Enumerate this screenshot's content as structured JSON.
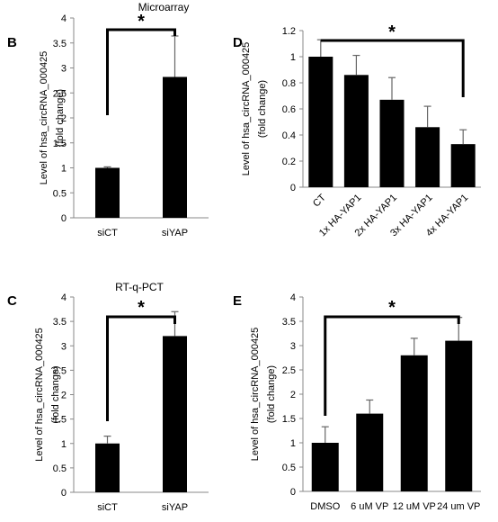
{
  "chart_data": [
    {
      "panel": "B",
      "type": "bar",
      "title": "Microarray",
      "ylabel": [
        "Level of  hsa_circRNA_000425",
        "(fold change)"
      ],
      "categories": [
        "siCT",
        "siYAP"
      ],
      "values": [
        1.0,
        2.82
      ],
      "errors": [
        0.02,
        0.82
      ],
      "ylim": [
        0,
        4
      ],
      "yticks": [
        0,
        0.5,
        1,
        1.5,
        2,
        2.5,
        3,
        3.5,
        4
      ],
      "significance": {
        "label": "*",
        "from": 0,
        "to": 1
      },
      "grid": false
    },
    {
      "panel": "D",
      "type": "bar",
      "title": "",
      "ylabel": [
        "Level of  hsa_circRNA_000425",
        "(fold change)"
      ],
      "categories": [
        "CT",
        "1x HA-YAP1",
        "2x HA-YAP1",
        "3x HA-YAP1",
        "4x HA-YAP1"
      ],
      "values": [
        1.0,
        0.86,
        0.67,
        0.46,
        0.33
      ],
      "errors": [
        0.13,
        0.15,
        0.17,
        0.16,
        0.11
      ],
      "ylim": [
        0,
        1.2
      ],
      "yticks": [
        0,
        0.2,
        0.4,
        0.6,
        0.8,
        1,
        1.2
      ],
      "significance": {
        "label": "*",
        "from": 0,
        "to": 4
      },
      "grid": false
    },
    {
      "panel": "C",
      "type": "bar",
      "title": "RT-q-PCT",
      "ylabel": [
        "Level of  hsa_circRNA_000425",
        "(fold change)"
      ],
      "categories": [
        "siCT",
        "siYAP"
      ],
      "values": [
        1.0,
        3.2
      ],
      "errors": [
        0.15,
        0.5
      ],
      "ylim": [
        0,
        4
      ],
      "yticks": [
        0,
        0.5,
        1,
        1.5,
        2,
        2.5,
        3,
        3.5,
        4
      ],
      "significance": {
        "label": "*",
        "from": 0,
        "to": 1
      },
      "grid": false
    },
    {
      "panel": "E",
      "type": "bar",
      "title": "",
      "ylabel": [
        "Level of  hsa_circRNA_000425",
        "(fold change)"
      ],
      "categories": [
        "DMSO",
        "6 uM VP",
        "12 uM VP",
        "24 um VP"
      ],
      "values": [
        1.0,
        1.6,
        2.8,
        3.1
      ],
      "errors": [
        0.33,
        0.28,
        0.35,
        0.48
      ],
      "ylim": [
        0,
        4
      ],
      "yticks": [
        0,
        0.5,
        1,
        1.5,
        2,
        2.5,
        3,
        3.5,
        4
      ],
      "significance": {
        "label": "*",
        "from": 0,
        "to": 3
      },
      "grid": false
    }
  ],
  "colors": {
    "bar": "#000000",
    "axis": "#888888",
    "text": "#000000"
  }
}
